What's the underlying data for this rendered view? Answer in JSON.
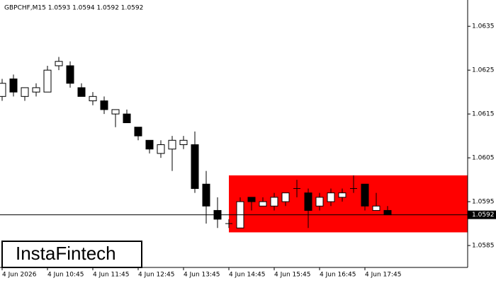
{
  "chart_data": {
    "type": "candlestick",
    "title": "GBPCHF,M15  1.0593 1.0594 1.0592 1.0592",
    "x": [
      "4 Jun 2026",
      null,
      null,
      null,
      "4 Jun 10:45",
      null,
      null,
      null,
      "4 Jun 11:45",
      null,
      null,
      null,
      "4 Jun 12:45",
      null,
      null,
      null,
      "4 Jun 13:45",
      null,
      null,
      null,
      "4 Jun 14:45",
      null,
      null,
      null,
      "4 Jun 15:45",
      null,
      null,
      null,
      "4 Jun 16:45",
      null,
      null,
      null,
      "4 Jun 17:45",
      null,
      null
    ],
    "open": [
      1.0619,
      1.0623,
      1.0619,
      1.062,
      1.062,
      1.0626,
      1.0626,
      1.0621,
      1.0618,
      1.0618,
      1.0615,
      1.0615,
      1.0612,
      1.0609,
      1.0606,
      1.0607,
      1.0608,
      1.0608,
      1.0599,
      1.0593,
      1.059,
      1.0589,
      1.0596,
      1.0594,
      1.0594,
      1.0595,
      1.0598,
      1.0597,
      1.0594,
      1.0595,
      1.0596,
      1.0598,
      1.0599,
      1.0593,
      1.0593
    ],
    "high": [
      1.0623,
      1.0624,
      1.0621,
      1.0622,
      1.0626,
      1.0628,
      1.0627,
      1.0622,
      1.062,
      1.0619,
      1.0616,
      1.0616,
      1.0612,
      1.0609,
      1.0609,
      1.061,
      1.061,
      1.0611,
      1.0602,
      1.0596,
      1.0591,
      1.0596,
      1.0596,
      1.0596,
      1.0597,
      1.0597,
      1.06,
      1.0598,
      1.0597,
      1.0598,
      1.0598,
      1.0601,
      1.0599,
      1.0597,
      1.0594
    ],
    "low": [
      1.0618,
      1.0619,
      1.0618,
      1.0619,
      1.062,
      1.0625,
      1.0621,
      1.0619,
      1.0617,
      1.0615,
      1.0612,
      1.0613,
      1.0609,
      1.0606,
      1.0605,
      1.0602,
      1.0607,
      1.0597,
      1.059,
      1.0589,
      1.0589,
      1.0589,
      1.0593,
      1.0594,
      1.0593,
      1.0594,
      1.0596,
      1.0589,
      1.0593,
      1.0594,
      1.0595,
      1.0597,
      1.0593,
      1.0593,
      1.0592
    ],
    "close": [
      1.0622,
      1.062,
      1.0621,
      1.0621,
      1.0625,
      1.0627,
      1.0622,
      1.0619,
      1.0619,
      1.0616,
      1.0616,
      1.0613,
      1.061,
      1.0607,
      1.0608,
      1.0609,
      1.0609,
      1.0598,
      1.0594,
      1.0591,
      1.059,
      1.0595,
      1.0595,
      1.0595,
      1.0596,
      1.0597,
      1.0598,
      1.0593,
      1.0596,
      1.0597,
      1.0597,
      1.0598,
      1.0594,
      1.0594,
      1.0592
    ],
    "up_color": "#ffffff",
    "down_color": "#000000",
    "ylim": [
      1.058,
      1.0641
    ],
    "yticks": [
      1.0585,
      1.0595,
      1.0605,
      1.0615,
      1.0625,
      1.0635
    ],
    "zone": {
      "start": "4 Jun 14:45",
      "high": 1.0601,
      "low": 1.0588,
      "color": "#ff0000"
    },
    "last_price": 1.0592
  },
  "watermark": "InstaFintech"
}
